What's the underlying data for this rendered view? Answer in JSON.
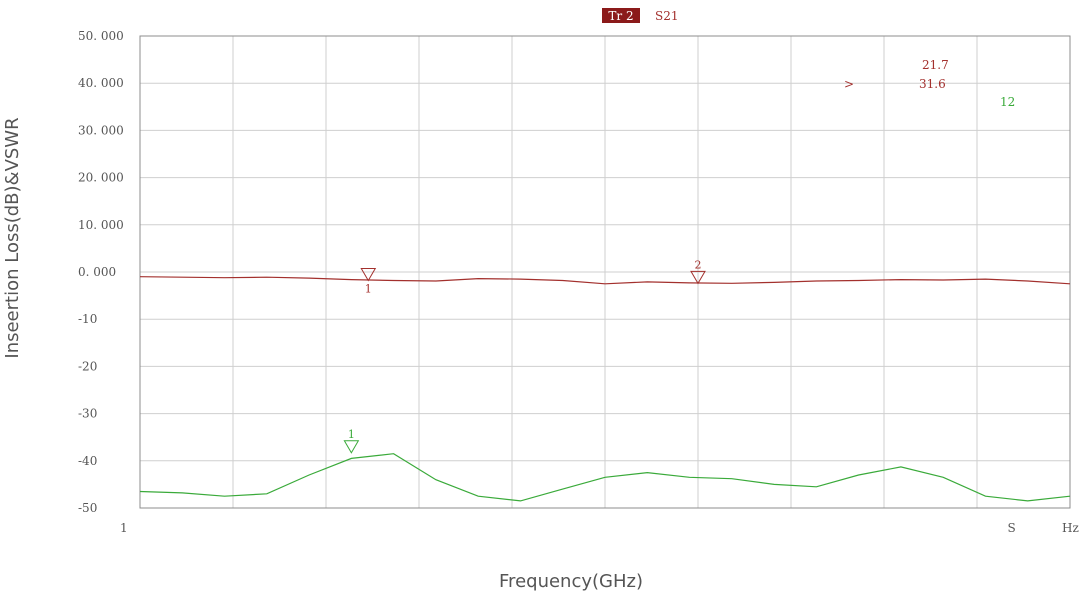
{
  "trace_header": {
    "tag": "Tr 2",
    "param": "S21"
  },
  "marker_readout": {
    "lines": [
      {
        "pointer": "",
        "text": "21.7"
      },
      {
        "pointer": ">",
        "text": "31.6"
      }
    ],
    "green_tag": "12"
  },
  "colors": {
    "s21": "#a3302d",
    "vswr": "#3aaa3a",
    "header_bg": "#8b1a1a",
    "grid": "#cfcfcf",
    "frame": "#8c8c8c"
  },
  "chart_data": {
    "type": "line",
    "xlabel": "Frequency(GHz)",
    "ylabel": "Inseertion Loss(dB)&VSWR",
    "ylim": [
      -50,
      50
    ],
    "y_ticks": [
      "50. 000",
      "40. 000",
      "30. 000",
      "20. 000",
      "10. 000",
      "0. 000",
      "-10",
      "-20",
      "-30",
      "-40",
      "-50"
    ],
    "x_tick_labels": [
      {
        "i": 0,
        "text": "1"
      },
      {
        "i": 10,
        "text": "S"
      },
      {
        "i": 11,
        "text": "Hz"
      }
    ],
    "x_range": [
      0,
      11
    ],
    "series": [
      {
        "name": "S21",
        "points": [
          [
            0,
            -1.0
          ],
          [
            0.5,
            -1.1
          ],
          [
            1,
            -1.2
          ],
          [
            1.5,
            -1.1
          ],
          [
            2,
            -1.3
          ],
          [
            2.5,
            -1.6
          ],
          [
            3,
            -1.8
          ],
          [
            3.5,
            -1.9
          ],
          [
            4,
            -1.4
          ],
          [
            4.5,
            -1.5
          ],
          [
            5,
            -1.8
          ],
          [
            5.5,
            -2.5
          ],
          [
            6,
            -2.1
          ],
          [
            6.5,
            -2.3
          ],
          [
            7,
            -2.4
          ],
          [
            7.5,
            -2.2
          ],
          [
            8,
            -1.9
          ],
          [
            8.5,
            -1.8
          ],
          [
            9,
            -1.6
          ],
          [
            9.5,
            -1.7
          ],
          [
            10,
            -1.5
          ],
          [
            10.5,
            -1.9
          ],
          [
            11,
            -2.5
          ]
        ],
        "markers": [
          {
            "label": "1",
            "x": 2.7,
            "y": -1.8
          },
          {
            "label": "2",
            "x": 6.6,
            "y": -2.4
          }
        ]
      },
      {
        "name": "VSWR",
        "points": [
          [
            0,
            -46.5
          ],
          [
            0.5,
            -46.8
          ],
          [
            1,
            -47.5
          ],
          [
            1.5,
            -47.0
          ],
          [
            2,
            -43.0
          ],
          [
            2.5,
            -39.5
          ],
          [
            3,
            -38.5
          ],
          [
            3.5,
            -44.0
          ],
          [
            4,
            -47.5
          ],
          [
            4.5,
            -48.5
          ],
          [
            5,
            -46.0
          ],
          [
            5.5,
            -43.5
          ],
          [
            6,
            -42.5
          ],
          [
            6.5,
            -43.5
          ],
          [
            7,
            -43.8
          ],
          [
            7.5,
            -45.0
          ],
          [
            8,
            -45.5
          ],
          [
            8.5,
            -43.0
          ],
          [
            9,
            -41.3
          ],
          [
            9.5,
            -43.5
          ],
          [
            10,
            -47.5
          ],
          [
            10.5,
            -48.5
          ],
          [
            11,
            -47.5
          ]
        ],
        "markers": [
          {
            "label": "1",
            "x": 2.5,
            "y": -38.3
          }
        ]
      }
    ]
  }
}
